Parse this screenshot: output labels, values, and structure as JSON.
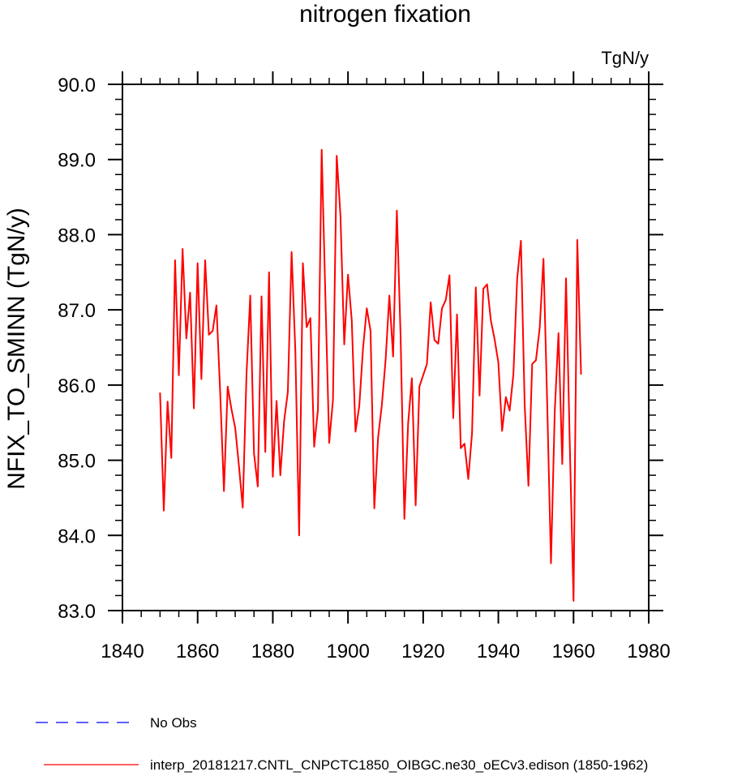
{
  "chart_data": {
    "type": "line",
    "title": "nitrogen fixation",
    "units": "TgN/y",
    "xlabel": "",
    "ylabel": "NFIX_TO_SMINN  (TgN/y)",
    "xlim": [
      1840,
      1980
    ],
    "ylim": [
      83.0,
      90.0
    ],
    "x_ticks": [
      "1840",
      "1860",
      "1880",
      "1900",
      "1920",
      "1940",
      "1960",
      "1980"
    ],
    "y_ticks": [
      "83.0",
      "84.0",
      "85.0",
      "86.0",
      "87.0",
      "88.0",
      "89.0",
      "90.0"
    ],
    "grid": false,
    "legend_position": "bottom-left",
    "series": [
      {
        "name": "No Obs",
        "color": "#0000ff",
        "style": "dashed",
        "x": [],
        "values": []
      },
      {
        "name": "interp_20181217.CNTL_CNPCTC1850_OIBGC.ne30_oECv3.edison (1850-1962)",
        "color": "#ff0000",
        "style": "solid",
        "x": [
          1850,
          1851,
          1852,
          1853,
          1854,
          1855,
          1856,
          1857,
          1858,
          1859,
          1860,
          1861,
          1862,
          1863,
          1864,
          1865,
          1866,
          1867,
          1868,
          1869,
          1870,
          1871,
          1872,
          1873,
          1874,
          1875,
          1876,
          1877,
          1878,
          1879,
          1880,
          1881,
          1882,
          1883,
          1884,
          1885,
          1886,
          1887,
          1888,
          1889,
          1890,
          1891,
          1892,
          1893,
          1894,
          1895,
          1896,
          1897,
          1898,
          1899,
          1900,
          1901,
          1902,
          1903,
          1904,
          1905,
          1906,
          1907,
          1908,
          1909,
          1910,
          1911,
          1912,
          1913,
          1914,
          1915,
          1916,
          1917,
          1918,
          1919,
          1920,
          1921,
          1922,
          1923,
          1924,
          1925,
          1926,
          1927,
          1928,
          1929,
          1930,
          1931,
          1932,
          1933,
          1934,
          1935,
          1936,
          1937,
          1938,
          1939,
          1940,
          1941,
          1942,
          1943,
          1944,
          1945,
          1946,
          1947,
          1948,
          1949,
          1950,
          1951,
          1952,
          1953,
          1954,
          1955,
          1956,
          1957,
          1958,
          1959,
          1960,
          1961,
          1962
        ],
        "values": [
          85.9,
          84.33,
          85.78,
          85.03,
          87.66,
          86.13,
          87.81,
          86.62,
          87.23,
          85.69,
          87.62,
          86.08,
          87.66,
          86.67,
          86.72,
          87.06,
          85.9,
          84.59,
          85.98,
          85.68,
          85.43,
          84.92,
          84.37,
          86.14,
          87.19,
          85.09,
          84.65,
          87.18,
          85.11,
          87.5,
          84.78,
          85.79,
          84.8,
          85.52,
          85.91,
          87.77,
          86.45,
          84.0,
          87.62,
          86.77,
          86.89,
          85.18,
          85.67,
          89.13,
          87.15,
          85.23,
          85.8,
          89.05,
          88.25,
          86.54,
          87.47,
          86.86,
          85.38,
          85.72,
          86.49,
          87.02,
          86.72,
          84.36,
          85.3,
          85.73,
          86.33,
          87.19,
          86.38,
          88.32,
          86.64,
          84.22,
          85.49,
          86.09,
          84.4,
          85.98,
          86.13,
          86.28,
          87.1,
          86.6,
          86.55,
          87.02,
          87.13,
          87.46,
          85.56,
          86.94,
          85.16,
          85.22,
          84.75,
          85.36,
          87.3,
          85.86,
          87.28,
          87.34,
          86.86,
          86.61,
          86.3,
          85.39,
          85.84,
          85.66,
          86.14,
          87.41,
          87.92,
          85.74,
          84.66,
          86.28,
          86.33,
          86.76,
          87.68,
          85.74,
          83.63,
          85.65,
          86.69,
          84.95,
          87.42,
          85.22,
          83.13,
          87.93,
          86.14
        ]
      }
    ]
  }
}
